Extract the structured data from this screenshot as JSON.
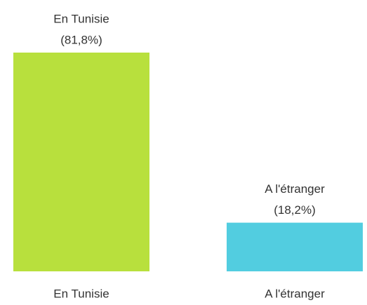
{
  "chart_data": {
    "type": "bar",
    "categories": [
      "En Tunisie",
      "A l'étranger"
    ],
    "values": [
      81.8,
      18.2
    ],
    "value_labels": [
      "(81,8%)",
      "(18,2%)"
    ],
    "colors": [
      "#b8e03d",
      "#52cde0"
    ]
  }
}
